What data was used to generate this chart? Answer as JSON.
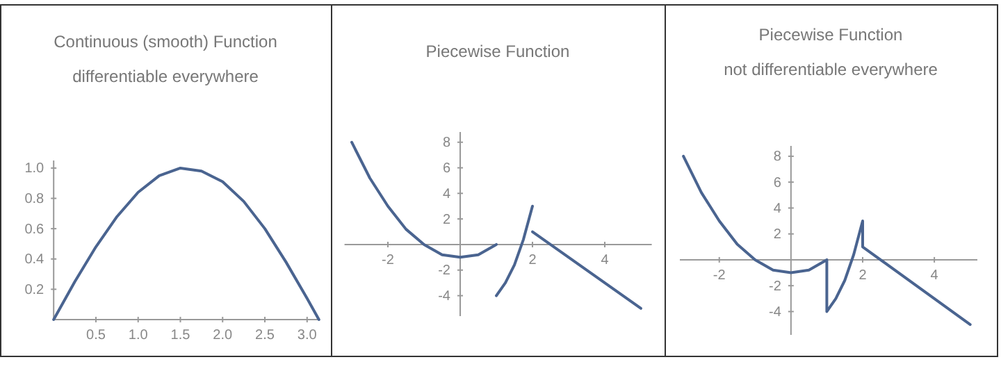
{
  "chart_data": [
    {
      "type": "line",
      "title": "Continuous (smooth) Function",
      "subtitle": "differentiable everywhere",
      "xlim": [
        0,
        3.15
      ],
      "ylim": [
        0,
        1.05
      ],
      "xticks": [
        0.5,
        {
          "value": 1,
          "label": "1.0"
        },
        1.5,
        {
          "value": 2,
          "label": "2.0"
        },
        2.5,
        {
          "value": 3,
          "label": "3.0"
        }
      ],
      "yticks": [
        0.2,
        0.4,
        0.6,
        0.8,
        {
          "value": 1,
          "label": "1.0"
        }
      ],
      "marker": "none",
      "line_style": "solid",
      "series": [
        {
          "color": "#4a6490",
          "x": [
            0,
            0.25,
            0.5,
            0.75,
            1.0,
            1.25,
            1.5,
            1.75,
            2.0,
            2.25,
            2.5,
            2.75,
            3.0,
            3.14
          ],
          "values": [
            0,
            0.25,
            0.48,
            0.68,
            0.84,
            0.95,
            1.0,
            0.98,
            0.91,
            0.78,
            0.6,
            0.38,
            0.14,
            0
          ]
        }
      ]
    },
    {
      "type": "line",
      "title": "Piecewise Function",
      "xlim": [
        -3.2,
        5.3
      ],
      "ylim": [
        -5.6,
        8.8
      ],
      "xticks": [
        -2,
        2,
        4
      ],
      "yticks": [
        -4,
        -2,
        2,
        4,
        6,
        8
      ],
      "marker": "none",
      "line_style": "solid",
      "series": [
        {
          "color": "#4a6490",
          "x": [
            -3,
            -2.5,
            -2,
            -1.5,
            -1,
            -0.5,
            0,
            0.5,
            1
          ],
          "values": [
            8,
            5.2,
            3,
            1.2,
            0,
            -0.8,
            -1,
            -0.8,
            0
          ]
        },
        {
          "color": "#4a6490",
          "x": [
            1,
            1.25,
            1.5,
            1.75,
            2
          ],
          "values": [
            -4,
            -3,
            -1.6,
            0.4,
            3
          ]
        },
        {
          "color": "#4a6490",
          "x": [
            2,
            5
          ],
          "values": [
            1,
            -5
          ]
        }
      ]
    },
    {
      "type": "line",
      "title": "Piecewise Function",
      "subtitle": "not differentiable everywhere",
      "xlim": [
        -3.1,
        5.2
      ],
      "ylim": [
        -5.8,
        8.8
      ],
      "xticks": [
        -2,
        2,
        4
      ],
      "yticks": [
        -4,
        -2,
        2,
        4,
        6,
        8
      ],
      "marker": "none",
      "line_style": "solid",
      "series": [
        {
          "color": "#4a6490",
          "x": [
            -3,
            -2.5,
            -2,
            -1.5,
            -1,
            -0.5,
            0,
            0.5,
            1,
            1,
            1.25,
            1.5,
            1.75,
            2,
            2,
            5
          ],
          "values": [
            8,
            5.2,
            3,
            1.2,
            0,
            -0.8,
            -1,
            -0.8,
            0,
            -4,
            -3,
            -1.6,
            0.4,
            3,
            1,
            -5
          ]
        }
      ]
    }
  ]
}
